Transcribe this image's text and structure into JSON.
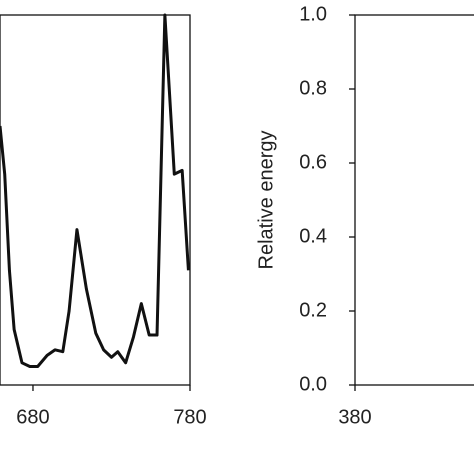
{
  "chart_data": [
    {
      "type": "line",
      "x": [
        659,
        662,
        665,
        668,
        673,
        678,
        683,
        689,
        694,
        699,
        703,
        708,
        714,
        720,
        725,
        730,
        734,
        739,
        744,
        749,
        754,
        759,
        764,
        770,
        775,
        779
      ],
      "series": [
        {
          "color": "#111111",
          "values": [
            0.7,
            0.57,
            0.31,
            0.15,
            0.06,
            0.05,
            0.05,
            0.08,
            0.095,
            0.09,
            0.2,
            0.42,
            0.26,
            0.14,
            0.095,
            0.075,
            0.09,
            0.06,
            0.13,
            0.22,
            0.135,
            0.135,
            1.0,
            0.57,
            0.58,
            0.31
          ]
        }
      ],
      "xlim": [
        659,
        780
      ],
      "xticks": [
        680,
        780
      ],
      "ylim": [
        0,
        1
      ]
    },
    {
      "type": "line",
      "y_label": "Relative energy",
      "series": [],
      "xlim": [
        380,
        480
      ],
      "xticks": [
        380
      ],
      "ylim": [
        0,
        1
      ],
      "yticks": [
        {
          "value": 0,
          "label": "0.0"
        },
        {
          "value": 0.2,
          "label": "0.2"
        },
        {
          "value": 0.4,
          "label": "0.4"
        },
        {
          "value": 0.6,
          "label": "0.6"
        },
        {
          "value": 0.8,
          "label": "0.8"
        },
        {
          "value": 1,
          "label": "1.0"
        }
      ]
    }
  ]
}
